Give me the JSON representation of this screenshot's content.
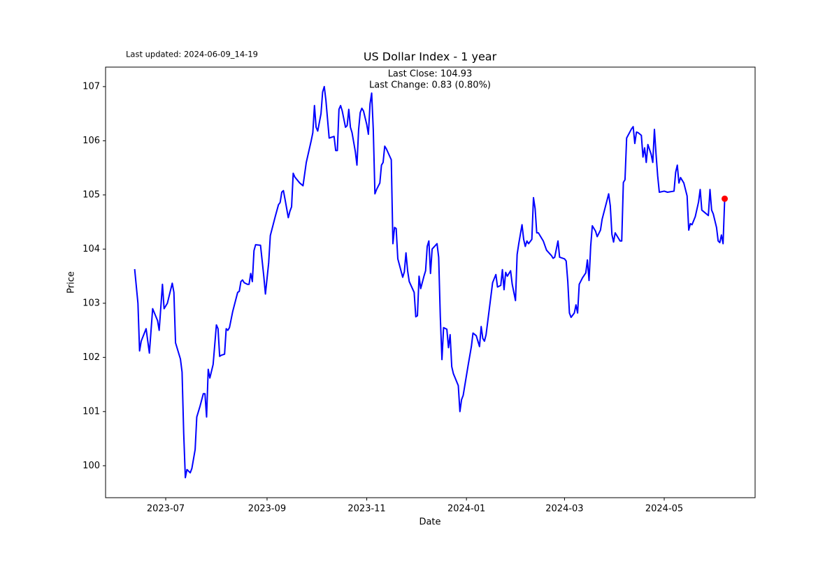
{
  "chart_data": {
    "type": "line",
    "title": "US Dollar Index - 1 year",
    "subtitle": "Last updated: 2024-06-09_14-19",
    "annotations": [
      "Last Close: 104.93",
      "Last Change: 0.83 (0.80%)"
    ],
    "x_label": "Date",
    "y_label": "Price",
    "x": [
      11,
      13,
      14,
      15,
      18,
      20,
      22,
      25,
      26,
      28,
      29,
      31,
      34,
      35,
      36,
      39,
      40,
      41,
      42,
      43,
      45,
      46,
      48,
      49,
      51,
      53,
      54,
      55,
      56,
      57,
      59,
      61,
      62,
      63,
      64,
      66,
      67,
      68,
      69,
      71,
      74,
      75,
      76,
      77,
      78,
      80,
      81,
      82,
      83,
      84,
      85,
      88,
      90,
      91,
      93,
      94,
      97,
      99,
      100,
      101,
      102,
      103,
      105,
      106,
      107,
      108,
      109,
      112,
      114,
      116,
      119,
      120,
      121,
      122,
      123,
      125,
      126,
      127,
      128,
      130,
      132,
      133,
      134,
      135,
      136,
      137,
      138,
      140,
      141,
      142,
      143,
      144,
      146,
      147,
      148,
      149,
      150,
      151,
      153,
      154,
      155,
      156,
      157,
      158,
      159,
      161,
      162,
      163,
      164,
      165,
      168,
      169,
      170,
      171,
      172,
      175,
      176,
      177,
      178,
      179,
      182,
      183,
      184,
      185,
      186,
      188,
      189,
      190,
      191,
      192,
      193,
      196,
      197,
      198,
      199,
      200,
      202,
      203,
      204,
      205,
      206,
      209,
      210,
      211,
      212,
      215,
      217,
      218,
      220,
      222,
      223,
      224,
      225,
      226,
      228,
      230,
      232,
      233,
      235,
      236,
      237,
      238,
      239,
      241,
      242,
      244,
      245,
      246,
      248,
      249,
      250,
      251,
      252,
      254,
      255,
      256,
      257,
      258,
      261,
      263,
      266,
      267,
      268,
      270,
      271,
      274,
      275,
      276,
      277,
      278,
      280,
      281,
      282,
      283,
      285,
      287,
      288,
      289,
      290,
      291,
      293,
      294,
      296,
      297,
      300,
      301,
      302,
      303,
      304,
      305,
      307,
      308,
      309,
      310,
      311,
      312,
      315,
      316,
      317,
      318,
      319,
      321,
      322,
      323,
      324,
      325,
      327,
      328,
      329,
      330,
      331,
      332,
      335,
      337,
      341,
      342,
      343,
      344,
      345,
      347,
      349,
      350,
      351,
      352,
      354,
      356,
      357,
      358,
      362,
      363,
      364,
      365,
      367,
      368,
      369,
      370,
      371,
      372
    ],
    "series": [
      {
        "color": "#0000ff",
        "values": [
          103.63,
          103.0,
          102.12,
          102.3,
          102.53,
          102.08,
          102.9,
          102.68,
          102.5,
          103.35,
          102.9,
          103.0,
          103.37,
          103.2,
          102.27,
          101.97,
          101.73,
          100.6,
          99.78,
          99.93,
          99.87,
          99.95,
          100.3,
          100.9,
          101.1,
          101.33,
          101.33,
          100.9,
          101.78,
          101.62,
          101.87,
          102.6,
          102.53,
          102.02,
          102.04,
          102.06,
          102.53,
          102.5,
          102.55,
          102.85,
          103.2,
          103.22,
          103.4,
          103.43,
          103.38,
          103.35,
          103.35,
          103.55,
          103.4,
          103.97,
          104.08,
          104.07,
          103.5,
          103.17,
          103.75,
          104.25,
          104.6,
          104.82,
          104.86,
          105.05,
          105.08,
          104.92,
          104.58,
          104.7,
          104.78,
          105.4,
          105.33,
          105.22,
          105.17,
          105.6,
          106.0,
          106.15,
          106.65,
          106.25,
          106.18,
          106.5,
          106.9,
          107.0,
          106.75,
          106.05,
          106.07,
          106.08,
          105.82,
          105.82,
          106.58,
          106.65,
          106.55,
          106.25,
          106.28,
          106.58,
          106.25,
          106.15,
          105.8,
          105.55,
          106.2,
          106.52,
          106.6,
          106.55,
          106.3,
          106.12,
          106.68,
          106.88,
          106.2,
          105.02,
          105.1,
          105.22,
          105.55,
          105.6,
          105.9,
          105.85,
          105.65,
          104.1,
          104.4,
          104.38,
          103.82,
          103.48,
          103.58,
          103.93,
          103.6,
          103.4,
          103.2,
          102.75,
          102.77,
          103.5,
          103.27,
          103.5,
          103.6,
          104.05,
          104.15,
          103.55,
          104.0,
          104.1,
          103.85,
          102.75,
          101.96,
          102.55,
          102.52,
          102.18,
          102.42,
          101.83,
          101.7,
          101.48,
          101.0,
          101.22,
          101.3,
          101.85,
          102.2,
          102.45,
          102.4,
          102.2,
          102.57,
          102.35,
          102.3,
          102.42,
          102.9,
          103.38,
          103.53,
          103.3,
          103.33,
          103.62,
          103.25,
          103.57,
          103.5,
          103.6,
          103.35,
          103.05,
          103.9,
          104.1,
          104.45,
          104.18,
          104.05,
          104.15,
          104.1,
          104.18,
          104.95,
          104.75,
          104.3,
          104.3,
          104.15,
          103.98,
          103.88,
          103.83,
          103.85,
          104.15,
          103.85,
          103.82,
          103.78,
          103.4,
          102.82,
          102.74,
          102.82,
          102.97,
          102.82,
          103.35,
          103.47,
          103.56,
          103.8,
          103.42,
          104.05,
          104.43,
          104.33,
          104.23,
          104.35,
          104.55,
          104.9,
          105.02,
          104.8,
          104.27,
          104.13,
          104.3,
          104.2,
          104.15,
          104.15,
          105.23,
          105.28,
          106.05,
          106.22,
          106.26,
          105.95,
          106.16,
          106.15,
          106.1,
          105.7,
          105.87,
          105.6,
          105.93,
          105.75,
          105.6,
          106.21,
          105.75,
          105.35,
          105.05,
          105.07,
          105.05,
          105.07,
          105.42,
          105.55,
          105.22,
          105.32,
          105.22,
          104.98,
          104.35,
          104.47,
          104.45,
          104.6,
          104.87,
          105.1,
          104.72,
          104.62,
          105.1,
          104.72,
          104.65,
          104.4,
          104.15,
          104.12,
          104.26,
          104.1,
          104.93
        ]
      }
    ],
    "last_marker_color": "#ff0000",
    "xlim": [
      -6.8,
      390.6
    ],
    "xticks": [
      {
        "value": 30,
        "label": "2023-07"
      },
      {
        "value": 92,
        "label": "2023-09"
      },
      {
        "value": 153,
        "label": "2023-11"
      },
      {
        "value": 214,
        "label": "2024-01"
      },
      {
        "value": 274,
        "label": "2024-03"
      },
      {
        "value": 335,
        "label": "2024-05"
      }
    ],
    "ylim": [
      99.41,
      107.36
    ],
    "yticks": [
      100,
      101,
      102,
      103,
      104,
      105,
      106,
      107
    ],
    "grid": false
  }
}
